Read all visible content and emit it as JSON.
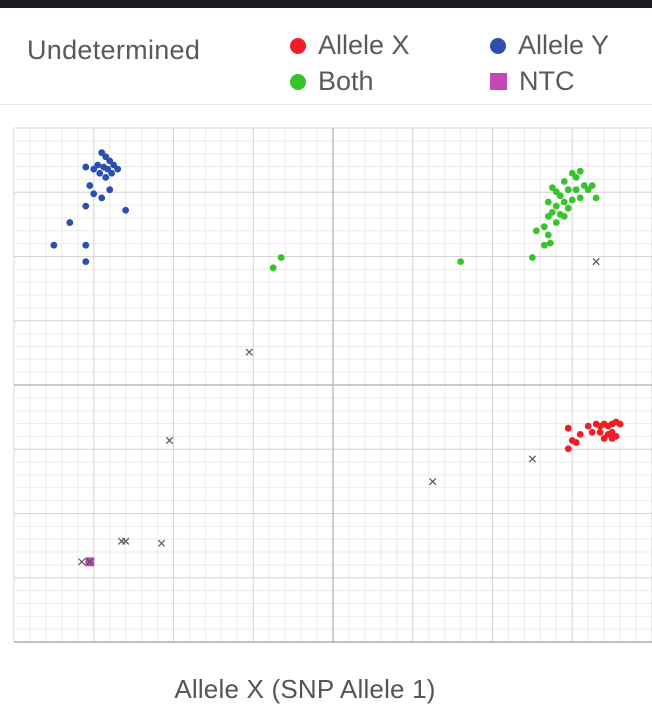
{
  "legend": {
    "title": "Undetermined",
    "items": [
      {
        "label": "Allele X",
        "color": "#f21c24",
        "shape": "circle"
      },
      {
        "label": "Allele Y",
        "color": "#2a4fb0",
        "shape": "circle"
      },
      {
        "label": "Both",
        "color": "#36c42c",
        "shape": "circle"
      },
      {
        "label": "NTC",
        "color": "#c248b4",
        "shape": "square"
      }
    ]
  },
  "chart_data": {
    "type": "scatter",
    "title": "",
    "xlabel": "Allele X (SNP Allele 1)",
    "ylabel": "",
    "xlim": [
      0,
      1.6
    ],
    "ylim": [
      0,
      1.25
    ],
    "grid": true,
    "legend_position": "top",
    "series": [
      {
        "name": "Allele Y",
        "color": "#2a4fb0",
        "marker": "circle",
        "points": [
          [
            0.22,
            1.19
          ],
          [
            0.23,
            1.18
          ],
          [
            0.24,
            1.17
          ],
          [
            0.21,
            1.16
          ],
          [
            0.225,
            1.155
          ],
          [
            0.235,
            1.15
          ],
          [
            0.25,
            1.16
          ],
          [
            0.245,
            1.14
          ],
          [
            0.215,
            1.14
          ],
          [
            0.2,
            1.15
          ],
          [
            0.18,
            1.155
          ],
          [
            0.26,
            1.15
          ],
          [
            0.23,
            1.13
          ],
          [
            0.19,
            1.11
          ],
          [
            0.24,
            1.1
          ],
          [
            0.2,
            1.09
          ],
          [
            0.22,
            1.08
          ],
          [
            0.18,
            1.06
          ],
          [
            0.28,
            1.05
          ],
          [
            0.14,
            1.02
          ],
          [
            0.1,
            0.965
          ],
          [
            0.18,
            0.965
          ],
          [
            0.18,
            0.925
          ]
        ]
      },
      {
        "name": "Allele X",
        "color": "#f21c24",
        "marker": "circle",
        "points": [
          [
            1.44,
            0.525
          ],
          [
            1.46,
            0.53
          ],
          [
            1.47,
            0.525
          ],
          [
            1.48,
            0.53
          ],
          [
            1.49,
            0.525
          ],
          [
            1.5,
            0.53
          ],
          [
            1.51,
            0.535
          ],
          [
            1.52,
            0.53
          ],
          [
            1.47,
            0.51
          ],
          [
            1.49,
            0.505
          ],
          [
            1.5,
            0.51
          ],
          [
            1.45,
            0.51
          ],
          [
            1.48,
            0.495
          ],
          [
            1.5,
            0.495
          ],
          [
            1.51,
            0.5
          ],
          [
            1.39,
            0.52
          ],
          [
            1.42,
            0.505
          ],
          [
            1.4,
            0.49
          ],
          [
            1.41,
            0.485
          ],
          [
            1.39,
            0.47
          ]
        ]
      },
      {
        "name": "Both",
        "color": "#36c42c",
        "marker": "circle",
        "points": [
          [
            1.4,
            1.14
          ],
          [
            1.42,
            1.145
          ],
          [
            1.41,
            1.13
          ],
          [
            1.38,
            1.12
          ],
          [
            1.43,
            1.11
          ],
          [
            1.44,
            1.1
          ],
          [
            1.45,
            1.11
          ],
          [
            1.41,
            1.1
          ],
          [
            1.39,
            1.1
          ],
          [
            1.36,
            1.095
          ],
          [
            1.35,
            1.105
          ],
          [
            1.37,
            1.085
          ],
          [
            1.42,
            1.08
          ],
          [
            1.46,
            1.08
          ],
          [
            1.4,
            1.075
          ],
          [
            1.38,
            1.07
          ],
          [
            1.34,
            1.07
          ],
          [
            1.36,
            1.06
          ],
          [
            1.39,
            1.055
          ],
          [
            1.35,
            1.045
          ],
          [
            1.37,
            1.04
          ],
          [
            1.38,
            1.035
          ],
          [
            1.34,
            1.035
          ],
          [
            1.36,
            1.02
          ],
          [
            1.33,
            1.01
          ],
          [
            1.31,
            1.0
          ],
          [
            1.34,
            0.99
          ],
          [
            1.345,
            0.97
          ],
          [
            1.33,
            0.965
          ],
          [
            1.3,
            0.935
          ],
          [
            1.12,
            0.925
          ],
          [
            0.67,
            0.935
          ],
          [
            0.65,
            0.91
          ]
        ]
      },
      {
        "name": "NTC",
        "color": "#c248b4",
        "marker": "square",
        "points": [
          [
            0.19,
            0.195
          ]
        ]
      },
      {
        "name": "Undetermined",
        "color": "#555555",
        "marker": "x",
        "points": [
          [
            1.46,
            0.925
          ],
          [
            0.59,
            0.705
          ],
          [
            0.39,
            0.49
          ],
          [
            0.27,
            0.245
          ],
          [
            0.28,
            0.245
          ],
          [
            0.37,
            0.24
          ],
          [
            0.17,
            0.195
          ],
          [
            0.19,
            0.195
          ],
          [
            1.3,
            0.445
          ],
          [
            1.05,
            0.39
          ]
        ]
      }
    ]
  }
}
